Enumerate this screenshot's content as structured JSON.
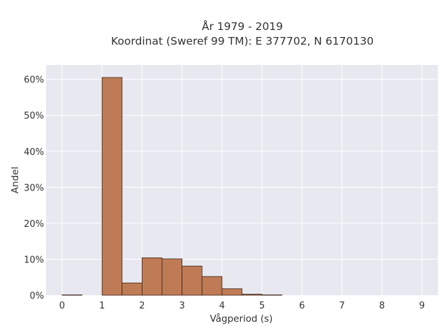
{
  "chart_data": {
    "type": "bar",
    "title": "År 1979 - 2019",
    "subtitle": "Koordinat (Sweref 99 TM): E 377702, N 6170130",
    "xlabel": "Vågperiod (s)",
    "ylabel": "Andel",
    "xlim": [
      -0.4,
      9.4
    ],
    "ylim": [
      0,
      0.64
    ],
    "xticks": [
      0,
      1,
      2,
      3,
      4,
      5,
      6,
      7,
      8,
      9
    ],
    "xtick_labels": [
      "0",
      "1",
      "2",
      "3",
      "4",
      "5",
      "6",
      "7",
      "8",
      "9"
    ],
    "yticks": [
      0,
      0.1,
      0.2,
      0.3,
      0.4,
      0.5,
      0.6
    ],
    "ytick_labels": [
      "0%",
      "10%",
      "20%",
      "30%",
      "40%",
      "50%",
      "60%"
    ],
    "bin_width": 0.5,
    "bins": [
      {
        "start": 0.0,
        "value": 0.001
      },
      {
        "start": 0.5,
        "value": 0.0
      },
      {
        "start": 1.0,
        "value": 0.605
      },
      {
        "start": 1.5,
        "value": 0.034
      },
      {
        "start": 2.0,
        "value": 0.104
      },
      {
        "start": 2.5,
        "value": 0.101
      },
      {
        "start": 3.0,
        "value": 0.081
      },
      {
        "start": 3.5,
        "value": 0.052
      },
      {
        "start": 4.0,
        "value": 0.018
      },
      {
        "start": 4.5,
        "value": 0.003
      },
      {
        "start": 5.0,
        "value": 0.001
      }
    ],
    "grid": true,
    "colors": {
      "bar": "#bf7b56",
      "bar_edge": "#3a2418",
      "plot_bg": "#e8e8f0",
      "grid": "#ffffff"
    }
  }
}
